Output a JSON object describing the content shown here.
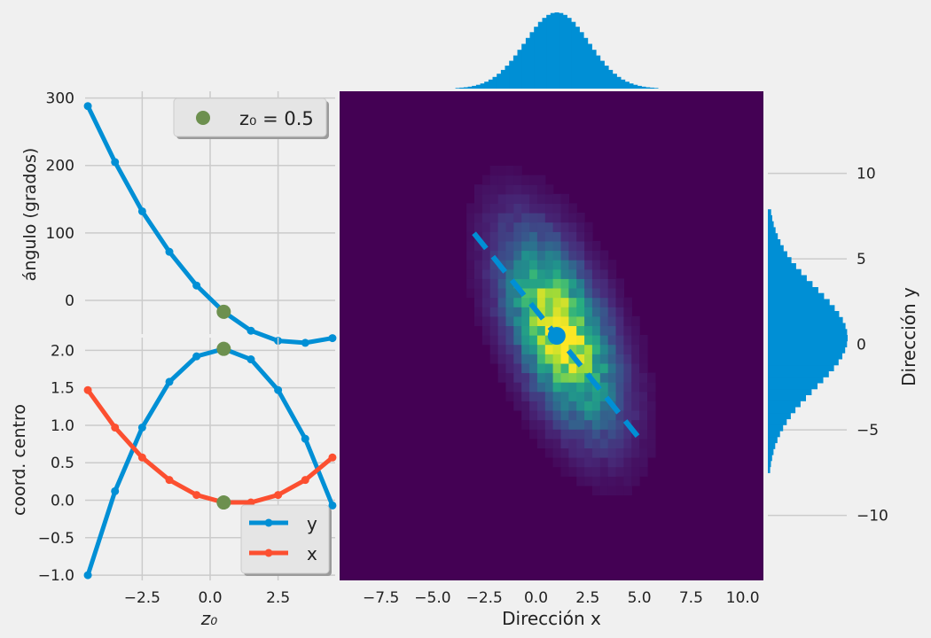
{
  "colors": {
    "background": "#f0f0f0",
    "grid": "#cbcbcb",
    "series_y": "#008fd5",
    "series_x": "#fc4f30",
    "marker_z0": "#6d904f",
    "heatmap_bg": "#440154"
  },
  "chart_data": [
    {
      "id": "angle-vs-z0",
      "type": "line",
      "xlabel": "",
      "ylabel": "ángulo (grados)",
      "xlim": [
        -4.6,
        4.6
      ],
      "ylim": [
        -50,
        310
      ],
      "yticks": [
        0,
        100,
        200,
        300
      ],
      "ytick_labels": [
        "0",
        "100",
        "200",
        "300"
      ],
      "x": [
        -4.5,
        -3.5,
        -2.5,
        -1.5,
        -0.5,
        0.5,
        1.5,
        2.5,
        3.5,
        4.5
      ],
      "series": [
        {
          "values": [
            288,
            205,
            132,
            72,
            22,
            -17,
            -45,
            -60,
            -63,
            -56
          ]
        }
      ],
      "highlight": {
        "label": "z₀ = 0.5",
        "x": 0.5,
        "y": -17
      },
      "legend": {
        "position": "top-right",
        "entries": [
          "z₀ = 0.5"
        ]
      }
    },
    {
      "id": "center-coords-vs-z0",
      "type": "line",
      "xlabel": "z₀",
      "ylabel": "coord. centro",
      "xlim": [
        -4.6,
        4.6
      ],
      "ylim": [
        -1.07,
        2.17
      ],
      "xticks": [
        -2.5,
        0.0,
        2.5
      ],
      "xtick_labels": [
        "−2.5",
        "0.0",
        "2.5"
      ],
      "yticks": [
        -1.0,
        -0.5,
        0.0,
        0.5,
        1.0,
        1.5,
        2.0
      ],
      "ytick_labels": [
        "−1.0",
        "−0.5",
        "0.0",
        "0.5",
        "1.0",
        "1.5",
        "2.0"
      ],
      "x": [
        -4.5,
        -3.5,
        -2.5,
        -1.5,
        -0.5,
        0.5,
        1.5,
        2.5,
        3.5,
        4.5
      ],
      "series": [
        {
          "name": "y",
          "values": [
            -1.0,
            0.12,
            0.97,
            1.58,
            1.92,
            2.02,
            1.88,
            1.47,
            0.82,
            -0.07
          ]
        },
        {
          "name": "x",
          "values": [
            1.47,
            0.97,
            0.57,
            0.27,
            0.07,
            -0.03,
            -0.03,
            0.07,
            0.27,
            0.57
          ]
        }
      ],
      "highlight_points": [
        {
          "x": 0.5,
          "y": 2.02
        },
        {
          "x": 0.5,
          "y": -0.03
        }
      ],
      "legend": {
        "position": "bottom-right",
        "entries": [
          "y",
          "x"
        ]
      }
    },
    {
      "id": "hist2d-xy",
      "type": "heatmap",
      "xlabel": "Dirección x",
      "ylabel": "Dirección y",
      "xlim": [
        -9.5,
        11.0
      ],
      "ylim": [
        -13.8,
        14.8
      ],
      "xticks": [
        -7.5,
        -5.0,
        -2.5,
        0.0,
        2.5,
        5.0,
        7.5,
        10.0
      ],
      "xtick_labels": [
        "−7.5",
        "−5.0",
        "−2.5",
        "0.0",
        "2.5",
        "5.0",
        "7.5",
        "10.0"
      ],
      "yticks": [
        -10,
        -5,
        0,
        5,
        10
      ],
      "ytick_labels": [
        "−10",
        "−5",
        "0",
        "5",
        "10"
      ],
      "center": [
        1.0,
        0.5
      ],
      "axis_line": {
        "from": [
          -3.0,
          6.5
        ],
        "to": [
          5.0,
          -5.5
        ]
      },
      "grid": false
    },
    {
      "id": "marginal-x",
      "type": "bar",
      "orientation": "vertical",
      "mean": 1.0,
      "std": 1.55,
      "range": [
        -5.5,
        7.3
      ]
    },
    {
      "id": "marginal-y",
      "type": "bar",
      "orientation": "horizontal",
      "mean": 0.4,
      "std": 2.9,
      "range": [
        -7.5,
        7.8
      ]
    }
  ]
}
